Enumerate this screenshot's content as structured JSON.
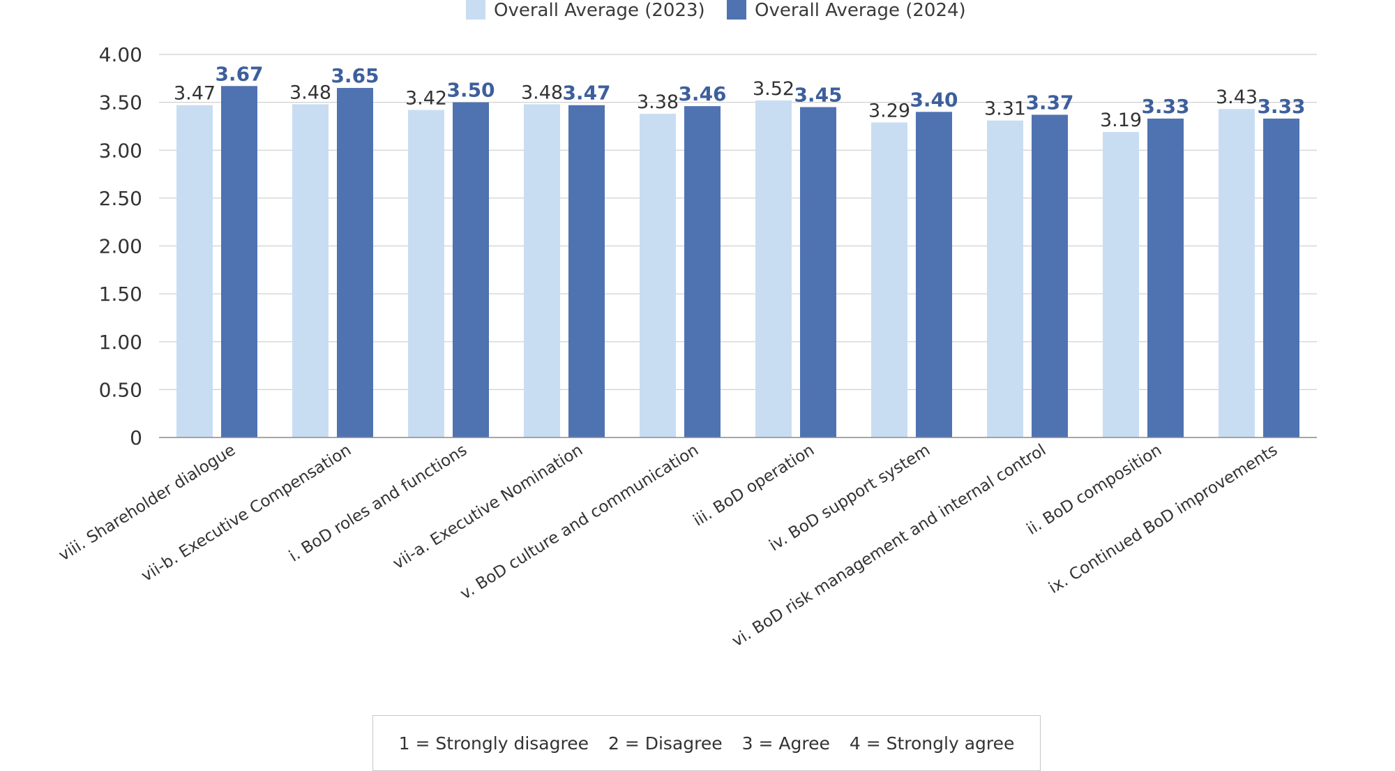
{
  "legend": [
    {
      "label": "Overall Average (2023)",
      "color": "#c9ddf2"
    },
    {
      "label": "Overall Average (2024)",
      "color": "#4f73b1"
    }
  ],
  "scale_note": [
    "1 = Strongly disagree",
    "2 = Disagree",
    "3 = Agree",
    "4 = Strongly agree"
  ],
  "chart_data": {
    "type": "bar",
    "title": "",
    "xlabel": "",
    "ylabel": "",
    "ylim": [
      0,
      4
    ],
    "yticks": [
      "0",
      "0.50",
      "1.00",
      "1.50",
      "2.00",
      "2.50",
      "3.00",
      "3.50",
      "4.00"
    ],
    "grid": true,
    "legend_position": "top",
    "categories": [
      "viii. Shareholder dialogue",
      "vii-b. Executive Compensation",
      "i. BoD roles and functions",
      "vii-a. Executive Nomination",
      "v. BoD culture and communication",
      "iii. BoD operation",
      "iv. BoD support system",
      "vi. BoD risk management and internal control",
      "ii. BoD composition",
      "ix. Continued BoD improvements"
    ],
    "series": [
      {
        "name": "Overall Average (2023)",
        "color": "#c9ddf2",
        "values": [
          3.47,
          3.48,
          3.42,
          3.48,
          3.38,
          3.52,
          3.29,
          3.31,
          3.19,
          3.43
        ],
        "labels": [
          "3.47",
          "3.48",
          "3.42",
          "3.48",
          "3.38",
          "3.52",
          "3.29",
          "3.31",
          "3.19",
          "3.43"
        ]
      },
      {
        "name": "Overall Average (2024)",
        "color": "#4f73b1",
        "values": [
          3.67,
          3.65,
          3.5,
          3.47,
          3.46,
          3.45,
          3.4,
          3.37,
          3.33,
          3.33
        ],
        "labels": [
          "3.67",
          "3.65",
          "3.50",
          "3.47",
          "3.46",
          "3.45",
          "3.40",
          "3.37",
          "3.33",
          "3.33"
        ]
      }
    ]
  }
}
